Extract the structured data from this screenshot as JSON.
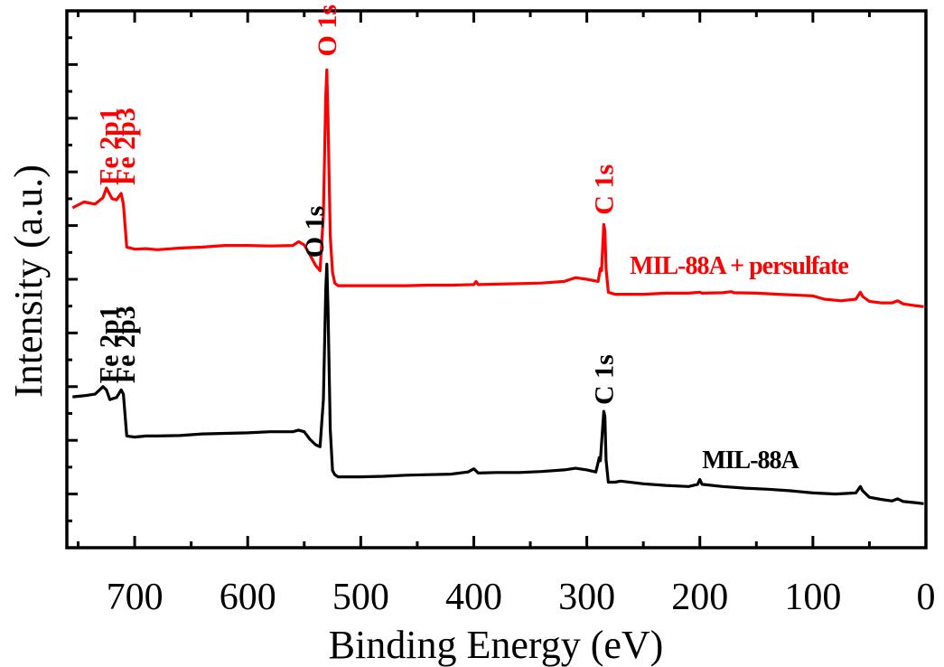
{
  "chart_data": {
    "type": "line",
    "title": "",
    "xlabel": "Binding Energy (eV)",
    "ylabel": "Intensity (a.u.)",
    "xlim": [
      760,
      0
    ],
    "x_reversed": true,
    "ylim": [
      0,
      100
    ],
    "grid": false,
    "x_ticks": [
      700,
      600,
      500,
      400,
      300,
      200,
      100,
      0
    ],
    "x_tick_labels": [
      "700",
      "600",
      "500",
      "400",
      "300",
      "200",
      "100",
      "0"
    ],
    "series": [
      {
        "name": "MIL-88A + persulfate",
        "color": "#ff0000",
        "points": [
          [
            755,
            63.3
          ],
          [
            745,
            64.4
          ],
          [
            735,
            64.0
          ],
          [
            728,
            65.2
          ],
          [
            725,
            67.0
          ],
          [
            720,
            65.0
          ],
          [
            716,
            64.8
          ],
          [
            712,
            66.0
          ],
          [
            710,
            64.0
          ],
          [
            707,
            56.0
          ],
          [
            700,
            55.6
          ],
          [
            690,
            55.7
          ],
          [
            680,
            55.5
          ],
          [
            660,
            55.8
          ],
          [
            640,
            56.0
          ],
          [
            620,
            56.3
          ],
          [
            600,
            56.3
          ],
          [
            580,
            56.2
          ],
          [
            560,
            56.3
          ],
          [
            555,
            57.0
          ],
          [
            550,
            56.4
          ],
          [
            545,
            54.6
          ],
          [
            540,
            52.6
          ],
          [
            536,
            51.6
          ],
          [
            533,
            62.0
          ],
          [
            531,
            84.0
          ],
          [
            530,
            89.0
          ],
          [
            529,
            80.0
          ],
          [
            527,
            58.0
          ],
          [
            525,
            51.3
          ],
          [
            523,
            49.3
          ],
          [
            520,
            48.8
          ],
          [
            500,
            48.8
          ],
          [
            480,
            48.8
          ],
          [
            460,
            48.8
          ],
          [
            440,
            48.9
          ],
          [
            420,
            48.9
          ],
          [
            400,
            49.0
          ],
          [
            398,
            49.6
          ],
          [
            396,
            49.0
          ],
          [
            360,
            49.2
          ],
          [
            340,
            49.3
          ],
          [
            320,
            49.6
          ],
          [
            310,
            50.3
          ],
          [
            300,
            50.0
          ],
          [
            290,
            49.6
          ],
          [
            288,
            52.0
          ],
          [
            287,
            51.6
          ],
          [
            285,
            60.2
          ],
          [
            284,
            59.0
          ],
          [
            283,
            52.0
          ],
          [
            281,
            47.6
          ],
          [
            275,
            47.2
          ],
          [
            250,
            47.2
          ],
          [
            230,
            47.4
          ],
          [
            210,
            47.4
          ],
          [
            200,
            47.6
          ],
          [
            198,
            47.4
          ],
          [
            180,
            47.5
          ],
          [
            172,
            47.7
          ],
          [
            170,
            47.5
          ],
          [
            150,
            47.4
          ],
          [
            130,
            47.2
          ],
          [
            110,
            47.0
          ],
          [
            100,
            46.9
          ],
          [
            90,
            46.3
          ],
          [
            75,
            46.0
          ],
          [
            62,
            46.3
          ],
          [
            58,
            47.6
          ],
          [
            56,
            46.8
          ],
          [
            50,
            45.9
          ],
          [
            40,
            45.6
          ],
          [
            30,
            45.6
          ],
          [
            25,
            46.0
          ],
          [
            20,
            45.4
          ],
          [
            10,
            45.1
          ],
          [
            2,
            44.9
          ]
        ]
      },
      {
        "name": "MIL-88A",
        "color": "#000000",
        "points": [
          [
            755,
            28.1
          ],
          [
            745,
            28.3
          ],
          [
            735,
            28.6
          ],
          [
            728,
            30.0
          ],
          [
            725,
            29.4
          ],
          [
            722,
            27.6
          ],
          [
            716,
            28.0
          ],
          [
            712,
            29.4
          ],
          [
            710,
            28.6
          ],
          [
            707,
            20.8
          ],
          [
            700,
            20.6
          ],
          [
            690,
            20.8
          ],
          [
            680,
            20.8
          ],
          [
            660,
            20.9
          ],
          [
            640,
            21.2
          ],
          [
            620,
            21.3
          ],
          [
            600,
            21.4
          ],
          [
            580,
            21.6
          ],
          [
            560,
            21.6
          ],
          [
            555,
            21.9
          ],
          [
            550,
            21.6
          ],
          [
            545,
            20.2
          ],
          [
            540,
            19.2
          ],
          [
            536,
            18.8
          ],
          [
            533,
            27.6
          ],
          [
            531,
            48.0
          ],
          [
            530,
            52.8
          ],
          [
            529,
            44.6
          ],
          [
            527,
            22.0
          ],
          [
            525,
            14.4
          ],
          [
            523,
            13.6
          ],
          [
            520,
            13.2
          ],
          [
            500,
            13.2
          ],
          [
            480,
            13.3
          ],
          [
            460,
            13.5
          ],
          [
            440,
            13.6
          ],
          [
            420,
            13.7
          ],
          [
            405,
            14.1
          ],
          [
            400,
            14.7
          ],
          [
            396,
            13.9
          ],
          [
            380,
            14.0
          ],
          [
            360,
            14.0
          ],
          [
            340,
            14.2
          ],
          [
            320,
            14.5
          ],
          [
            310,
            14.8
          ],
          [
            300,
            14.5
          ],
          [
            292,
            14.1
          ],
          [
            289,
            16.8
          ],
          [
            288,
            16.2
          ],
          [
            285,
            25.4
          ],
          [
            284,
            24.4
          ],
          [
            283,
            16.4
          ],
          [
            281,
            12.2
          ],
          [
            275,
            12.2
          ],
          [
            270,
            12.4
          ],
          [
            250,
            11.9
          ],
          [
            230,
            11.6
          ],
          [
            210,
            11.4
          ],
          [
            202,
            11.8
          ],
          [
            200,
            12.7
          ],
          [
            198,
            11.8
          ],
          [
            180,
            11.4
          ],
          [
            160,
            11.1
          ],
          [
            140,
            10.9
          ],
          [
            120,
            10.6
          ],
          [
            100,
            10.2
          ],
          [
            80,
            10.0
          ],
          [
            62,
            10.2
          ],
          [
            58,
            11.4
          ],
          [
            56,
            10.6
          ],
          [
            50,
            9.4
          ],
          [
            40,
            9.0
          ],
          [
            30,
            8.7
          ],
          [
            25,
            9.1
          ],
          [
            20,
            8.6
          ],
          [
            10,
            8.4
          ],
          [
            2,
            8.2
          ]
        ]
      }
    ],
    "peak_labels": [
      {
        "text": "Fe 2p1",
        "x": 723,
        "y": 67.5,
        "color": "#ff0000"
      },
      {
        "text": "Fe 2p3",
        "x": 708,
        "y": 67.5,
        "color": "#ff0000"
      },
      {
        "text": "O 1s",
        "x": 530,
        "y": 91.5,
        "color": "#ff0000"
      },
      {
        "text": "C 1s",
        "x": 285,
        "y": 62.0,
        "color": "#ff0000"
      },
      {
        "text": "Fe 2p1",
        "x": 723,
        "y": 30.6,
        "color": "#000000"
      },
      {
        "text": "Fe 2p3",
        "x": 708,
        "y": 30.6,
        "color": "#000000"
      },
      {
        "text": "O 1s",
        "x": 541,
        "y": 54.0,
        "color": "#000000"
      },
      {
        "text": "C 1s",
        "x": 285,
        "y": 26.6,
        "color": "#000000"
      }
    ],
    "series_labels": [
      {
        "text": "MIL-88A + persulfate",
        "x": 262,
        "y": 51.0,
        "color": "#ff0000"
      },
      {
        "text": "MIL-88A",
        "x": 198,
        "y": 14.8,
        "color": "#000000"
      }
    ]
  }
}
